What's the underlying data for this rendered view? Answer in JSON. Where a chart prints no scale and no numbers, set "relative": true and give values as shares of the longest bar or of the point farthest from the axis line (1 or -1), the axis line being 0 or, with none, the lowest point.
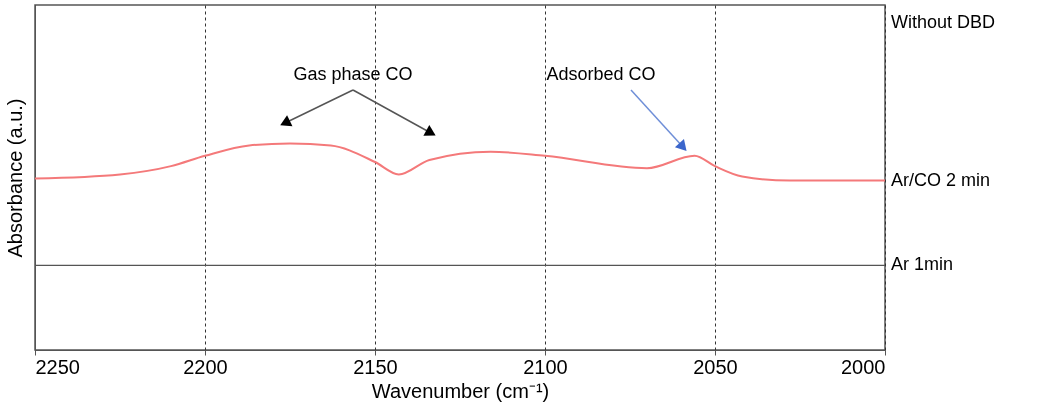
{
  "chart_data": {
    "type": "line",
    "xlabel": "Wavenumber (cm⁻¹)",
    "ylabel": "Absorbance (a.u.)",
    "relative": true,
    "xlim": [
      2250,
      2000
    ],
    "xticks": [
      2250,
      2200,
      2150,
      2100,
      2050,
      2000
    ],
    "grid": "x",
    "line_style": "solid",
    "x": [
      2250,
      2225,
      2210,
      2200,
      2187,
      2175,
      2163,
      2150,
      2143,
      2134,
      2116,
      2100,
      2070,
      2056,
      2050,
      2042,
      2028,
      2000
    ],
    "series": [
      {
        "name": "Ar/CO 2 min",
        "color": "#f4797a",
        "values": [
          0.83,
          0.85,
          0.89,
          0.94,
          0.99,
          1,
          0.99,
          0.91,
          0.85,
          0.92,
          0.96,
          0.94,
          0.88,
          0.94,
          0.89,
          0.84,
          0.82,
          0.82
        ]
      },
      {
        "name": "Ar 1min",
        "color": "#555555",
        "values": [
          0.41,
          0.41,
          0.41,
          0.41,
          0.41,
          0.41,
          0.41,
          0.41,
          0.41,
          0.41,
          0.41,
          0.41,
          0.41,
          0.41,
          0.41,
          0.41,
          0.41,
          0.41
        ]
      }
    ],
    "annotations": [
      "Gas phase CO",
      "Adsorbed CO",
      "Without DBD"
    ]
  }
}
